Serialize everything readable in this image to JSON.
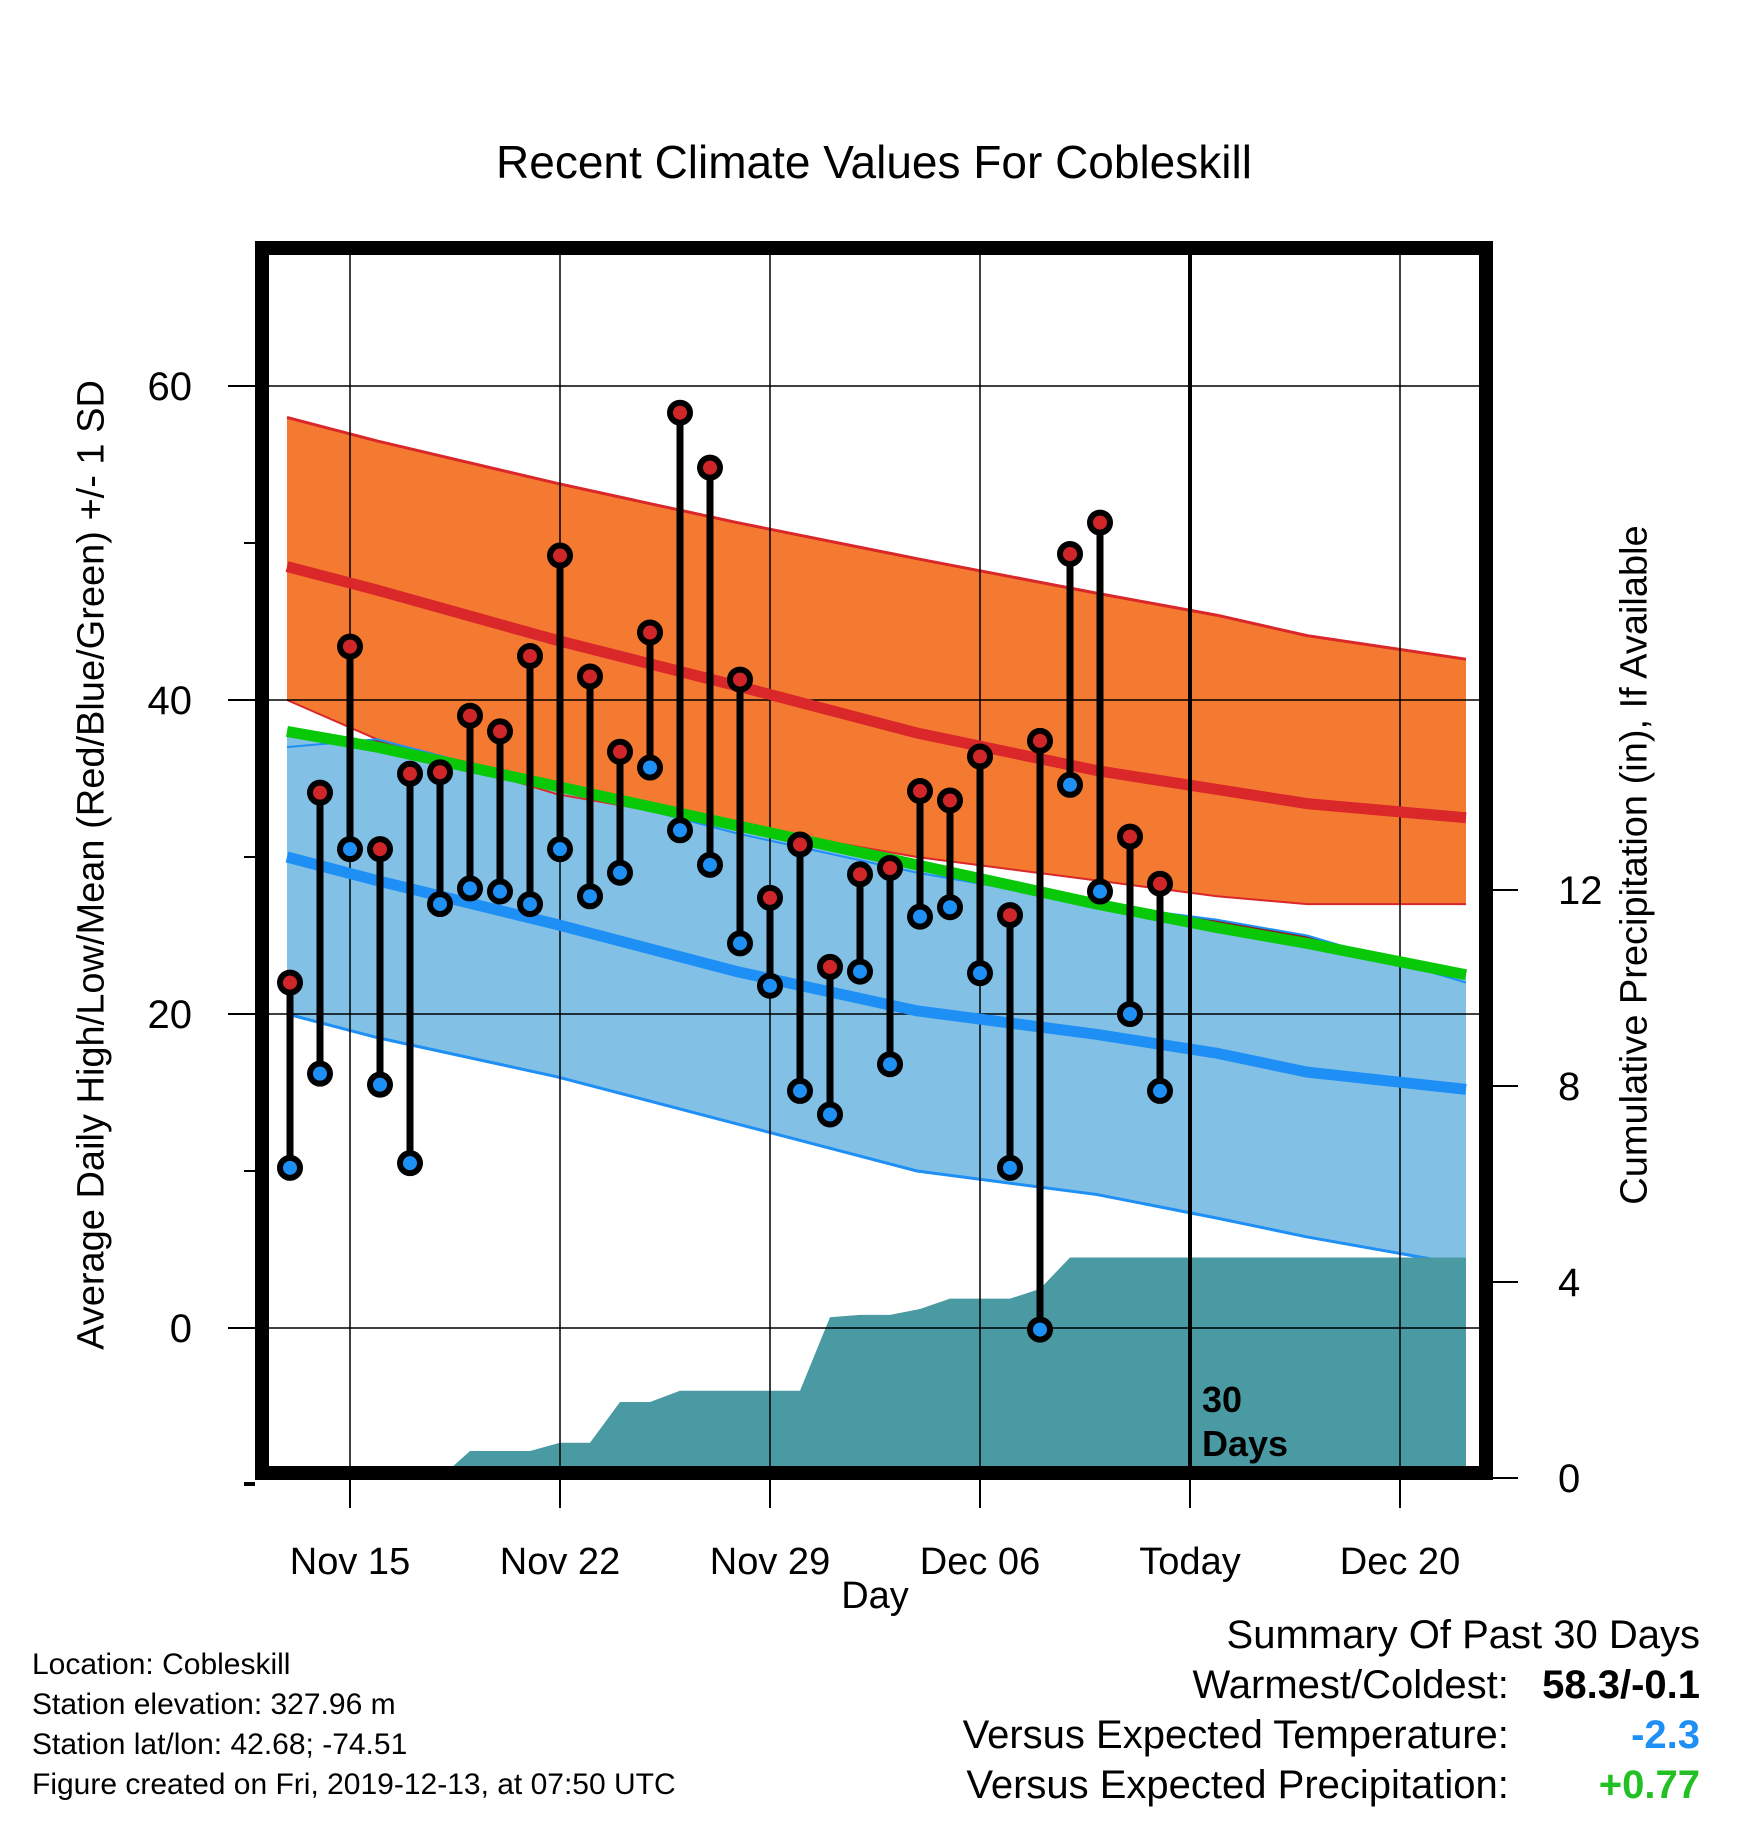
{
  "chart_data": {
    "type": "line",
    "title": "Recent Climate Values For Cobleskill",
    "xlabel": "Day",
    "ylabel_left": "Average Daily High/Low/Mean (Red/Blue/Green) +/- 1 SD",
    "ylabel_right": "Cumulative Precipitation (in), If Available",
    "ylim_left": [
      -10,
      69
    ],
    "ylim_right": [
      0,
      18.8
    ],
    "left_ticks": [
      "0",
      "20",
      "40",
      "60"
    ],
    "right_ticks": [
      "0",
      "4",
      "8",
      "12"
    ],
    "x_ticks": [
      {
        "label": "Nov 15",
        "day": 15
      },
      {
        "label": "Nov 22",
        "day": 22
      },
      {
        "label": "Nov 29",
        "day": 29
      },
      {
        "label": "Dec 06",
        "day": 36
      },
      {
        "label": "Today",
        "day": 43
      },
      {
        "label": "Dec 20",
        "day": 50
      }
    ],
    "today_label": [
      "30",
      "Days"
    ],
    "normal_bands": {
      "x_days": [
        12.9,
        15.9,
        21.9,
        27.9,
        33.9,
        39.9,
        43.9,
        46.9,
        52.2
      ],
      "high_mean": [
        48.5,
        47.0,
        43.8,
        40.9,
        37.9,
        35.5,
        34.3,
        33.4,
        32.5
      ],
      "high_plus_sd": [
        58.0,
        56.5,
        53.8,
        51.3,
        49.0,
        46.8,
        45.4,
        44.1,
        42.6
      ],
      "high_minus_sd": [
        40.0,
        37.5,
        34.0,
        32.0,
        30.0,
        28.5,
        27.5,
        27.0,
        27.0
      ],
      "mean": [
        38.0,
        37.0,
        34.5,
        32.0,
        29.5,
        27.0,
        25.5,
        24.5,
        22.5
      ],
      "low_mean": [
        30.0,
        28.5,
        25.7,
        22.7,
        20.2,
        18.7,
        17.5,
        16.3,
        15.2
      ],
      "low_plus_sd": [
        37.0,
        37.5,
        34.5,
        31.5,
        29.0,
        27.0,
        26.0,
        25.0,
        22.0
      ],
      "low_minus_sd": [
        20.0,
        18.5,
        16.0,
        13.0,
        10.0,
        8.5,
        7.0,
        5.8,
        4.0
      ]
    },
    "observations": {
      "days": [
        13,
        14,
        15,
        16,
        17,
        18,
        19,
        20,
        21,
        22,
        23,
        24,
        25,
        26,
        27,
        28,
        29,
        30,
        31,
        32,
        33,
        34,
        35,
        36,
        37,
        38,
        39,
        40,
        41,
        42
      ],
      "highs": [
        22.0,
        34.1,
        43.4,
        30.5,
        35.3,
        35.4,
        39.0,
        38.0,
        42.8,
        49.2,
        41.5,
        36.7,
        44.3,
        58.3,
        54.8,
        41.3,
        27.4,
        30.8,
        23.0,
        28.9,
        29.3,
        34.2,
        33.6,
        36.4,
        26.3,
        37.4,
        49.3,
        51.3,
        31.3,
        28.3
      ],
      "lows": [
        10.2,
        16.2,
        30.5,
        15.5,
        10.5,
        27.0,
        28.0,
        27.8,
        27.0,
        30.5,
        27.5,
        29.0,
        35.7,
        31.7,
        29.5,
        24.5,
        21.8,
        15.1,
        13.6,
        22.7,
        16.8,
        26.2,
        26.8,
        22.6,
        10.2,
        -0.1,
        34.6,
        27.8,
        20.0,
        15.1
      ]
    },
    "cumulative_precip": {
      "days": [
        18,
        19,
        21,
        22,
        23,
        24,
        25,
        26,
        27,
        30,
        31,
        32,
        33,
        34,
        35,
        36,
        37,
        38,
        39,
        52.2
      ],
      "values": [
        0,
        0.55,
        0.55,
        0.72,
        0.72,
        1.55,
        1.55,
        1.78,
        1.78,
        1.78,
        3.28,
        3.33,
        3.33,
        3.45,
        3.66,
        3.66,
        3.66,
        3.86,
        4.5,
        4.5
      ]
    },
    "colors": {
      "high_band": "#f47a31",
      "high_line": "#d9272a",
      "overlap": "#8e1a1e",
      "mean_line": "#08c808",
      "low_band": "#82c0e6",
      "low_line": "#1e8ff5",
      "precip": "#4a9aa3",
      "high_marker": "#d0262a",
      "low_marker": "#1e8ff5"
    }
  },
  "footer": {
    "location": "Location: Cobleskill",
    "elevation": "Station elevation: 327.96 m",
    "latlon": "Station lat/lon: 42.68; -74.51",
    "created": "Figure created on Fri, 2019-12-13, at 07:50 UTC"
  },
  "summary": {
    "heading": "Summary Of Past 30 Days",
    "warm_cold_label": "Warmest/Coldest:",
    "warm_cold_value": "58.3/-0.1",
    "temp_label": "Versus Expected Temperature:",
    "temp_value": "-2.3",
    "temp_color": "#1e8ff5",
    "precip_label": "Versus Expected Precipitation:",
    "precip_value": "+0.77",
    "precip_color": "#22c022"
  }
}
